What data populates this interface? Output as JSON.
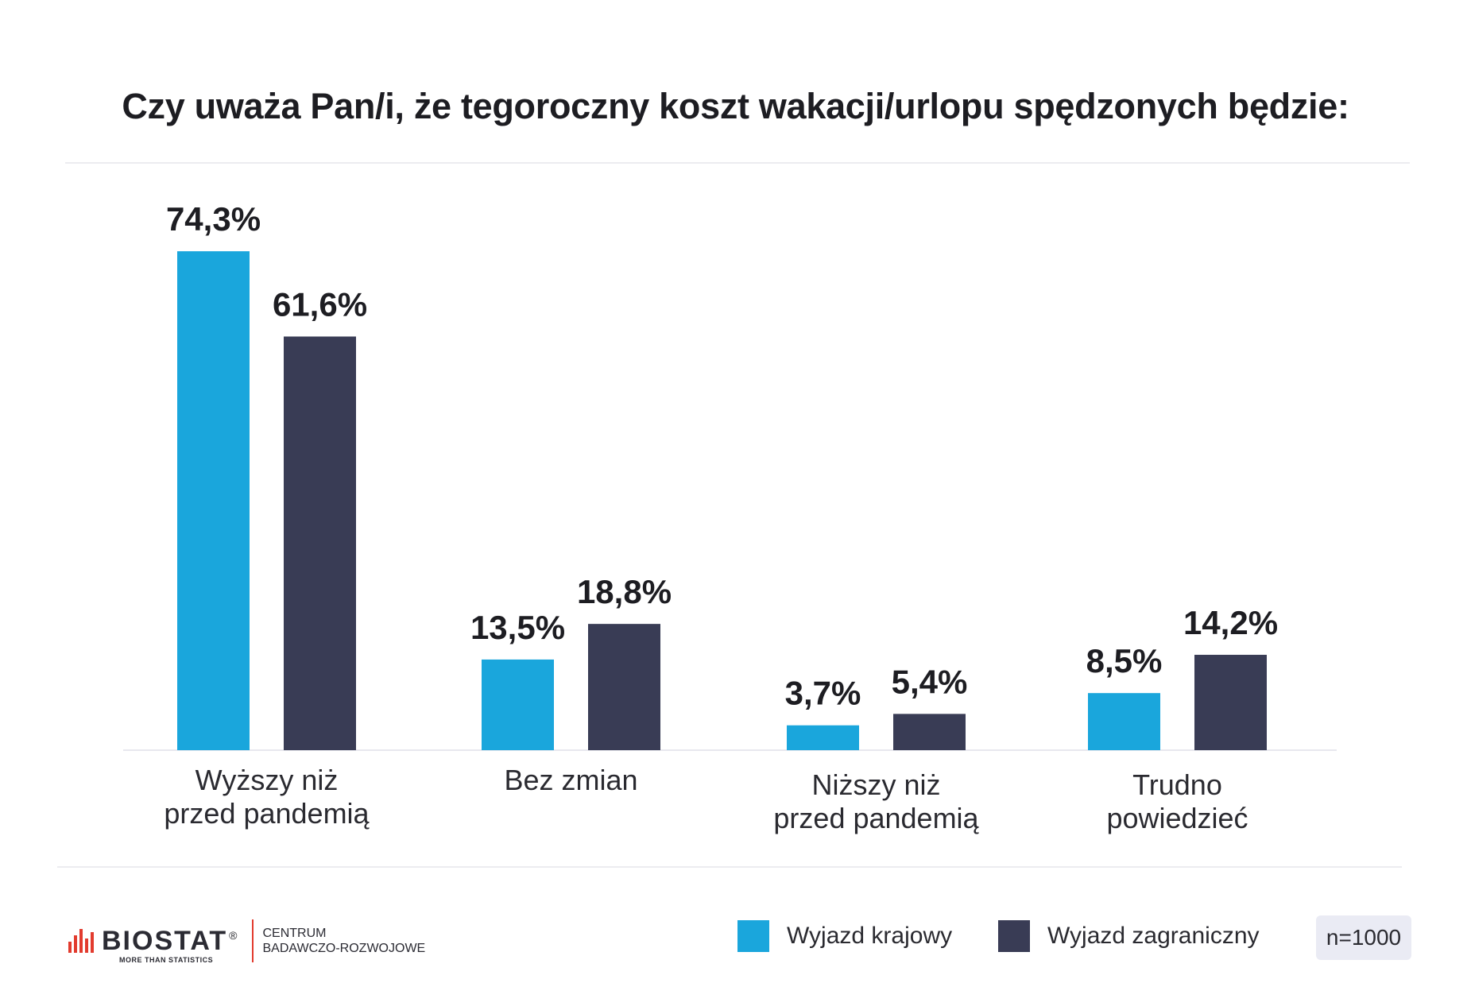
{
  "chart_data": {
    "type": "bar",
    "title": "Czy uważa Pan/i, że tegoroczny koszt wakacji/urlopu spędzonych będzie:",
    "categories": [
      [
        "Wyższy niż",
        "przed pandemią"
      ],
      [
        "Bez zmian"
      ],
      [
        "Niższy niż",
        "przed pandemią"
      ],
      [
        "Trudno",
        "powiedzieć"
      ]
    ],
    "series": [
      {
        "name": "Wyjazd krajowy",
        "color": "#1aa6dc",
        "values": [
          74.3,
          13.5,
          3.7,
          8.5
        ],
        "labels": [
          "74,3%",
          "13,5%",
          "3,7%",
          "8,5%"
        ]
      },
      {
        "name": "Wyjazd zagraniczny",
        "color": "#393c55",
        "values": [
          61.6,
          18.8,
          5.4,
          14.2
        ],
        "labels": [
          "61,6%",
          "18,8%",
          "5,4%",
          "14,2%"
        ]
      }
    ],
    "ylim": [
      0,
      80
    ],
    "grid": false,
    "legend": "bottom-right"
  },
  "footer": {
    "logo_word": "BIOSTAT",
    "logo_reg": "®",
    "logo_tagline": "MORE THAN STATISTICS",
    "logo_sub_line1": "CENTRUM",
    "logo_sub_line2": "BADAWCZO-ROZWOJOWE",
    "sample": "n=1000"
  }
}
